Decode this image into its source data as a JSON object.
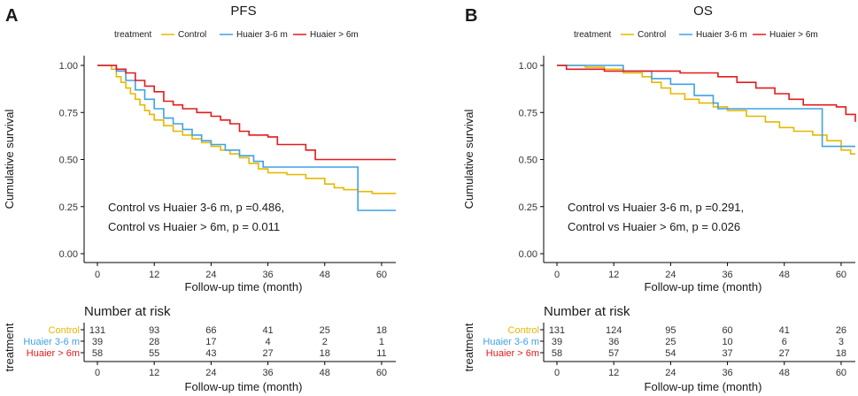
{
  "colors": {
    "control": "#E6B800",
    "huaier36": "#3FA1E6",
    "huaier6": "#E41A1C",
    "axis": "#000000"
  },
  "chart_data": [
    {
      "type": "line",
      "panel_letter": "A",
      "title": "PFS",
      "legend_title": "treatment",
      "legend": [
        "Control",
        "Huaier 3-6 m",
        "Huaier > 6m"
      ],
      "xlabel": "Follow-up time (month)",
      "ylabel": "Cumulative survival",
      "xlim": [
        0,
        63
      ],
      "ylim": [
        0,
        1
      ],
      "xticks": [
        0,
        12,
        24,
        36,
        48,
        60
      ],
      "yticks": [
        "0.00",
        "0.25",
        "0.50",
        "0.75",
        "1.00"
      ],
      "series": [
        {
          "name": "Control",
          "color": "#E6B800",
          "points": [
            [
              0,
              1
            ],
            [
              3,
              0.98
            ],
            [
              4,
              0.94
            ],
            [
              5,
              0.91
            ],
            [
              6,
              0.88
            ],
            [
              7,
              0.85
            ],
            [
              8,
              0.82
            ],
            [
              9,
              0.79
            ],
            [
              10,
              0.76
            ],
            [
              11,
              0.74
            ],
            [
              12,
              0.71
            ],
            [
              14,
              0.68
            ],
            [
              16,
              0.65
            ],
            [
              18,
              0.63
            ],
            [
              20,
              0.61
            ],
            [
              22,
              0.59
            ],
            [
              24,
              0.57
            ],
            [
              26,
              0.55
            ],
            [
              28,
              0.53
            ],
            [
              30,
              0.51
            ],
            [
              32,
              0.48
            ],
            [
              34,
              0.45
            ],
            [
              36,
              0.43
            ],
            [
              40,
              0.42
            ],
            [
              44,
              0.4
            ],
            [
              48,
              0.37
            ],
            [
              50,
              0.35
            ],
            [
              52,
              0.34
            ],
            [
              55,
              0.33
            ],
            [
              58,
              0.32
            ],
            [
              63,
              0.32
            ]
          ]
        },
        {
          "name": "Huaier 3-6 m",
          "color": "#3FA1E6",
          "points": [
            [
              0,
              1
            ],
            [
              4,
              0.97
            ],
            [
              6,
              0.92
            ],
            [
              8,
              0.87
            ],
            [
              10,
              0.82
            ],
            [
              12,
              0.77
            ],
            [
              14,
              0.72
            ],
            [
              16,
              0.69
            ],
            [
              18,
              0.66
            ],
            [
              20,
              0.63
            ],
            [
              22,
              0.6
            ],
            [
              24,
              0.58
            ],
            [
              27,
              0.55
            ],
            [
              30,
              0.52
            ],
            [
              33,
              0.49
            ],
            [
              35,
              0.46
            ],
            [
              55,
              0.46
            ],
            [
              55,
              0.23
            ],
            [
              63,
              0.23
            ]
          ]
        },
        {
          "name": "Huaier > 6m",
          "color": "#E41A1C",
          "points": [
            [
              0,
              1
            ],
            [
              4,
              0.98
            ],
            [
              6,
              0.96
            ],
            [
              8,
              0.92
            ],
            [
              10,
              0.89
            ],
            [
              12,
              0.86
            ],
            [
              14,
              0.81
            ],
            [
              16,
              0.79
            ],
            [
              18,
              0.77
            ],
            [
              21,
              0.75
            ],
            [
              24,
              0.73
            ],
            [
              26,
              0.71
            ],
            [
              28,
              0.69
            ],
            [
              30,
              0.65
            ],
            [
              32,
              0.63
            ],
            [
              36,
              0.62
            ],
            [
              38,
              0.58
            ],
            [
              44,
              0.55
            ],
            [
              46,
              0.5
            ],
            [
              63,
              0.5
            ]
          ]
        }
      ],
      "annotation": [
        "Control vs Huaier 3-6 m, p =0.486,",
        "Control vs Huaier > 6m, p = 0.011"
      ],
      "risk_table": {
        "title": "Number at risk",
        "ylabel": "treatment",
        "xlabel": "Follow-up time (month)",
        "times": [
          0,
          12,
          24,
          36,
          48,
          60
        ],
        "rows": [
          {
            "label": "Control",
            "color": "#E6B800",
            "values": [
              "131",
              "93",
              "66",
              "41",
              "25",
              "18"
            ]
          },
          {
            "label": "Huaier 3-6 m",
            "color": "#3FA1E6",
            "values": [
              "39",
              "28",
              "17",
              "4",
              "2",
              "1"
            ]
          },
          {
            "label": "Huaier > 6m",
            "color": "#E41A1C",
            "values": [
              "58",
              "55",
              "43",
              "27",
              "18",
              "11"
            ]
          }
        ]
      }
    },
    {
      "type": "line",
      "panel_letter": "B",
      "title": "OS",
      "legend_title": "treatment",
      "legend": [
        "Control",
        "Huaier 3-6 m",
        "Huaier > 6m"
      ],
      "xlabel": "Follow-up time (month)",
      "ylabel": "Cumulative survival",
      "xlim": [
        0,
        63
      ],
      "ylim": [
        0,
        1
      ],
      "xticks": [
        0,
        12,
        24,
        36,
        48,
        60
      ],
      "yticks": [
        "0.00",
        "0.25",
        "0.50",
        "0.75",
        "1.00"
      ],
      "series": [
        {
          "name": "Control",
          "color": "#E6B800",
          "points": [
            [
              0,
              1
            ],
            [
              6,
              0.99
            ],
            [
              10,
              0.98
            ],
            [
              14,
              0.96
            ],
            [
              18,
              0.94
            ],
            [
              20,
              0.91
            ],
            [
              22,
              0.88
            ],
            [
              24,
              0.85
            ],
            [
              27,
              0.82
            ],
            [
              30,
              0.8
            ],
            [
              33,
              0.78
            ],
            [
              36,
              0.76
            ],
            [
              40,
              0.73
            ],
            [
              44,
              0.7
            ],
            [
              47,
              0.67
            ],
            [
              50,
              0.65
            ],
            [
              54,
              0.63
            ],
            [
              57,
              0.6
            ],
            [
              60,
              0.55
            ],
            [
              62,
              0.53
            ],
            [
              63,
              0.53
            ]
          ]
        },
        {
          "name": "Huaier 3-6 m",
          "color": "#3FA1E6",
          "points": [
            [
              0,
              1
            ],
            [
              12,
              1
            ],
            [
              14,
              0.97
            ],
            [
              20,
              0.93
            ],
            [
              24,
              0.9
            ],
            [
              29,
              0.84
            ],
            [
              33,
              0.8
            ],
            [
              34,
              0.77
            ],
            [
              56,
              0.77
            ],
            [
              56,
              0.57
            ],
            [
              63,
              0.57
            ]
          ]
        },
        {
          "name": "Huaier > 6m",
          "color": "#E41A1C",
          "points": [
            [
              0,
              1
            ],
            [
              2,
              0.98
            ],
            [
              10,
              0.97
            ],
            [
              26,
              0.96
            ],
            [
              34,
              0.94
            ],
            [
              38,
              0.91
            ],
            [
              42,
              0.88
            ],
            [
              46,
              0.85
            ],
            [
              49,
              0.82
            ],
            [
              52,
              0.79
            ],
            [
              59,
              0.78
            ],
            [
              61,
              0.74
            ],
            [
              63,
              0.7
            ]
          ]
        }
      ],
      "annotation": [
        "Control vs Huaier 3-6 m, p =0.291,",
        "Control vs Huaier > 6m, p = 0.026"
      ],
      "risk_table": {
        "title": "Number at risk",
        "ylabel": "treatment",
        "xlabel": "Follow-up time (month)",
        "times": [
          0,
          12,
          24,
          36,
          48,
          60
        ],
        "rows": [
          {
            "label": "Control",
            "color": "#E6B800",
            "values": [
              "131",
              "124",
              "95",
              "60",
              "41",
              "26"
            ]
          },
          {
            "label": "Huaier 3-6 m",
            "color": "#3FA1E6",
            "values": [
              "39",
              "36",
              "25",
              "10",
              "6",
              "3"
            ]
          },
          {
            "label": "Huaier > 6m",
            "color": "#E41A1C",
            "values": [
              "58",
              "57",
              "54",
              "37",
              "27",
              "18"
            ]
          }
        ]
      }
    }
  ]
}
